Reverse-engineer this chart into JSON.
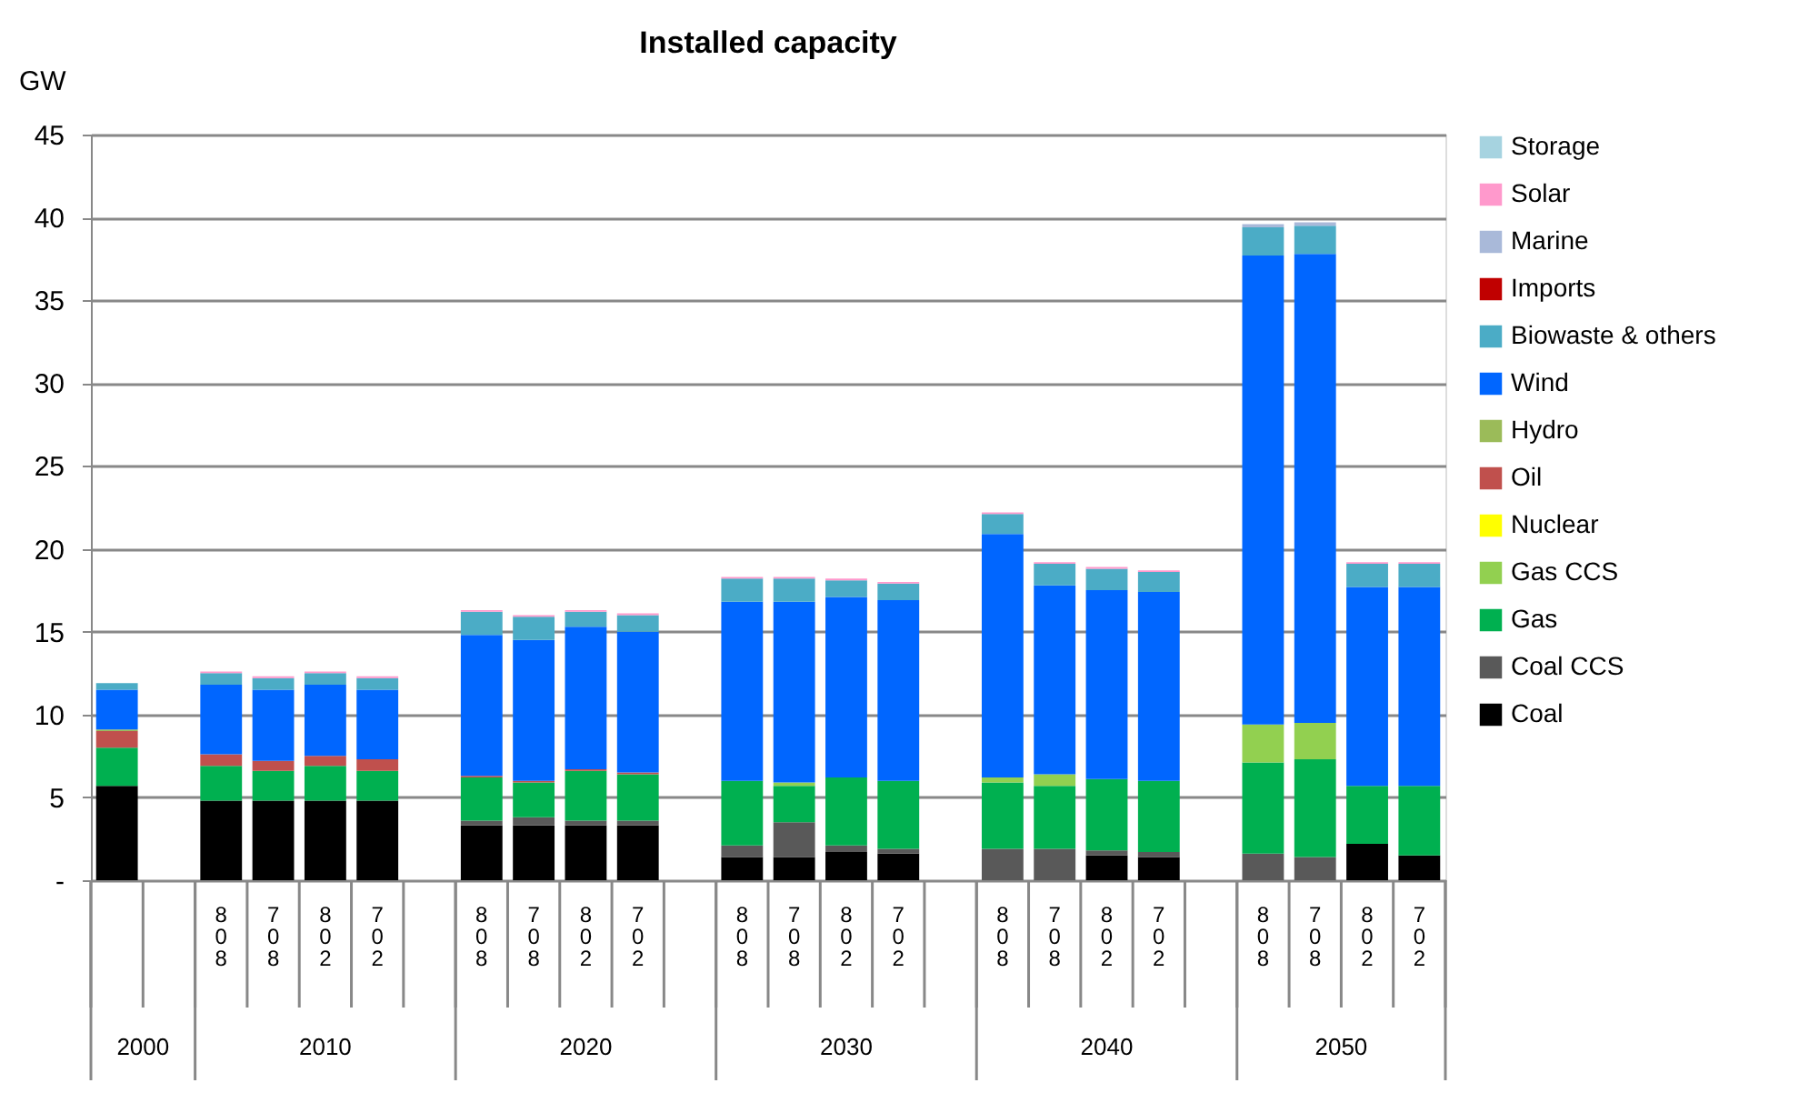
{
  "chart_data": {
    "type": "bar",
    "stacked": true,
    "title": "Installed capacity",
    "ylabel": "GW",
    "categories": [
      null,
      null,
      "808",
      "708",
      "802",
      "702",
      null,
      "808",
      "708",
      "802",
      "702",
      null,
      "808",
      "708",
      "802",
      "702",
      null,
      "808",
      "708",
      "802",
      "702",
      null,
      "808",
      "708",
      "802",
      "702"
    ],
    "annotations": [
      "2000",
      "2010",
      "2020",
      "2030",
      "2040",
      "2050"
    ],
    "ylim": [
      0,
      45
    ],
    "yticks": [
      {
        "value": 0,
        "label": "-"
      },
      5,
      10,
      15,
      20,
      25,
      30,
      35,
      40,
      45
    ],
    "grid": "y",
    "legend": "right",
    "series": [
      {
        "name": "Coal",
        "color": "#000000",
        "values": [
          5.7,
          null,
          4.8,
          4.8,
          4.8,
          4.8,
          null,
          3.3,
          3.3,
          3.3,
          3.3,
          null,
          1.4,
          1.4,
          1.7,
          1.6,
          null,
          null,
          null,
          1.5,
          1.4,
          null,
          null,
          null,
          2.2,
          1.5
        ]
      },
      {
        "name": "Coal CCS",
        "color": "#595959",
        "values": [
          null,
          null,
          null,
          null,
          null,
          null,
          null,
          0.3,
          0.5,
          0.3,
          0.3,
          null,
          0.7,
          2.1,
          0.4,
          0.3,
          null,
          1.9,
          1.9,
          0.3,
          0.3,
          null,
          1.6,
          1.4,
          null,
          null
        ]
      },
      {
        "name": "Gas",
        "color": "#00b050",
        "values": [
          2.3,
          null,
          2.1,
          1.8,
          2.1,
          1.8,
          null,
          2.6,
          2.1,
          3.0,
          2.8,
          null,
          3.9,
          2.2,
          4.1,
          4.1,
          null,
          4.0,
          3.8,
          4.3,
          4.3,
          null,
          5.5,
          5.9,
          3.5,
          4.2
        ]
      },
      {
        "name": "Gas CCS",
        "color": "#92d050",
        "values": [
          null,
          null,
          null,
          null,
          null,
          null,
          null,
          null,
          null,
          null,
          null,
          null,
          null,
          0.2,
          null,
          null,
          null,
          0.3,
          0.7,
          null,
          null,
          null,
          2.3,
          2.2,
          null,
          null
        ]
      },
      {
        "name": "Nuclear",
        "color": "#ffff00",
        "values": [
          null,
          null,
          null,
          null,
          null,
          null,
          null,
          null,
          null,
          null,
          null,
          null,
          null,
          null,
          null,
          null,
          null,
          null,
          null,
          null,
          null,
          null,
          null,
          null,
          null,
          null
        ]
      },
      {
        "name": "Oil",
        "color": "#c0504d",
        "values": [
          1.0,
          null,
          0.7,
          0.6,
          0.6,
          0.7,
          null,
          0.1,
          0.1,
          0.1,
          0.1,
          null,
          null,
          null,
          null,
          null,
          null,
          null,
          null,
          null,
          null,
          null,
          null,
          null,
          null,
          null
        ]
      },
      {
        "name": "Hydro",
        "color": "#9bbb59",
        "values": [
          0.1,
          null,
          null,
          null,
          null,
          null,
          null,
          null,
          null,
          null,
          null,
          null,
          null,
          null,
          null,
          null,
          null,
          null,
          null,
          null,
          null,
          null,
          null,
          null,
          null,
          null
        ]
      },
      {
        "name": "Wind",
        "color": "#0066ff",
        "values": [
          2.4,
          null,
          4.2,
          4.3,
          4.3,
          4.2,
          null,
          8.5,
          8.5,
          8.6,
          8.5,
          null,
          10.8,
          10.9,
          10.9,
          10.9,
          null,
          14.7,
          11.4,
          11.4,
          11.4,
          null,
          28.3,
          28.3,
          12.0,
          12.0
        ]
      },
      {
        "name": "Biowaste & others",
        "color": "#4bacc6",
        "values": [
          0.4,
          null,
          0.7,
          0.7,
          0.7,
          0.7,
          null,
          1.4,
          1.4,
          0.9,
          1.0,
          null,
          1.4,
          1.4,
          1.0,
          1.0,
          null,
          1.2,
          1.3,
          1.3,
          1.2,
          null,
          1.7,
          1.7,
          1.4,
          1.4
        ]
      },
      {
        "name": "Imports",
        "color": "#c00000",
        "values": [
          null,
          null,
          null,
          null,
          null,
          null,
          null,
          null,
          null,
          null,
          null,
          null,
          null,
          null,
          null,
          null,
          null,
          null,
          null,
          null,
          null,
          null,
          null,
          null,
          null,
          null
        ]
      },
      {
        "name": "Marine",
        "color": "#a9b9d9",
        "values": [
          null,
          null,
          null,
          null,
          null,
          null,
          null,
          null,
          null,
          null,
          null,
          null,
          null,
          null,
          null,
          null,
          null,
          null,
          null,
          null,
          null,
          null,
          0.2,
          0.2,
          null,
          null
        ]
      },
      {
        "name": "Solar",
        "color": "#ff99cc",
        "values": [
          null,
          null,
          0.1,
          0.1,
          0.1,
          0.1,
          null,
          0.1,
          0.1,
          0.1,
          0.1,
          null,
          0.1,
          0.1,
          0.1,
          0.1,
          null,
          0.1,
          0.1,
          0.1,
          0.1,
          null,
          null,
          null,
          0.1,
          0.1
        ]
      },
      {
        "name": "Storage",
        "color": "#a6d3e0",
        "values": [
          null,
          null,
          null,
          null,
          null,
          null,
          null,
          null,
          null,
          null,
          null,
          null,
          null,
          null,
          null,
          null,
          null,
          null,
          null,
          null,
          null,
          null,
          null,
          null,
          null,
          null
        ]
      }
    ]
  }
}
